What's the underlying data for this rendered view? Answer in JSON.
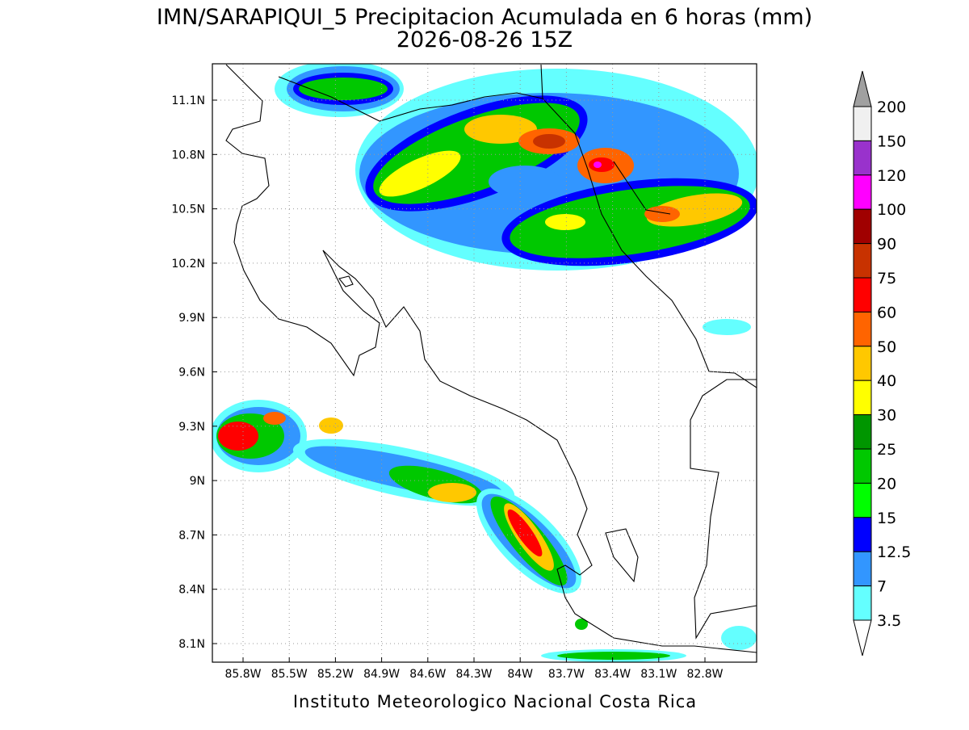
{
  "header": {
    "title": "IMN/SARAPIQUI_5 Precipitacion Acumulada en 6 horas (mm)",
    "subtitle": "2026-08-26 15Z"
  },
  "map": {
    "lat_labels": [
      "11.1N",
      "10.8N",
      "10.5N",
      "10.2N",
      "9.9N",
      "9.6N",
      "9.3N",
      "9N",
      "8.7N",
      "8.4N",
      "8.1N"
    ],
    "lon_labels": [
      "85.8W",
      "85.5W",
      "85.2W",
      "84.9W",
      "84.6W",
      "84.3W",
      "84W",
      "83.7W",
      "83.4W",
      "83.1W",
      "82.8W"
    ]
  },
  "colorbar": {
    "labels": [
      "200",
      "150",
      "120",
      "100",
      "90",
      "75",
      "60",
      "50",
      "40",
      "30",
      "25",
      "20",
      "15",
      "12.5",
      "7",
      "3.5"
    ],
    "colors": [
      "#a0a0a0",
      "#f0f0f0",
      "#9932cc",
      "#ff00ff",
      "#a00000",
      "#c83200",
      "#ff0000",
      "#ff6400",
      "#ffc800",
      "#ffff00",
      "#009600",
      "#00c800",
      "#00ff00",
      "#0000ff",
      "#3296ff",
      "#64ffff",
      "#ffffff"
    ]
  },
  "footer": "Instituto Meteorologico Nacional Costa Rica"
}
